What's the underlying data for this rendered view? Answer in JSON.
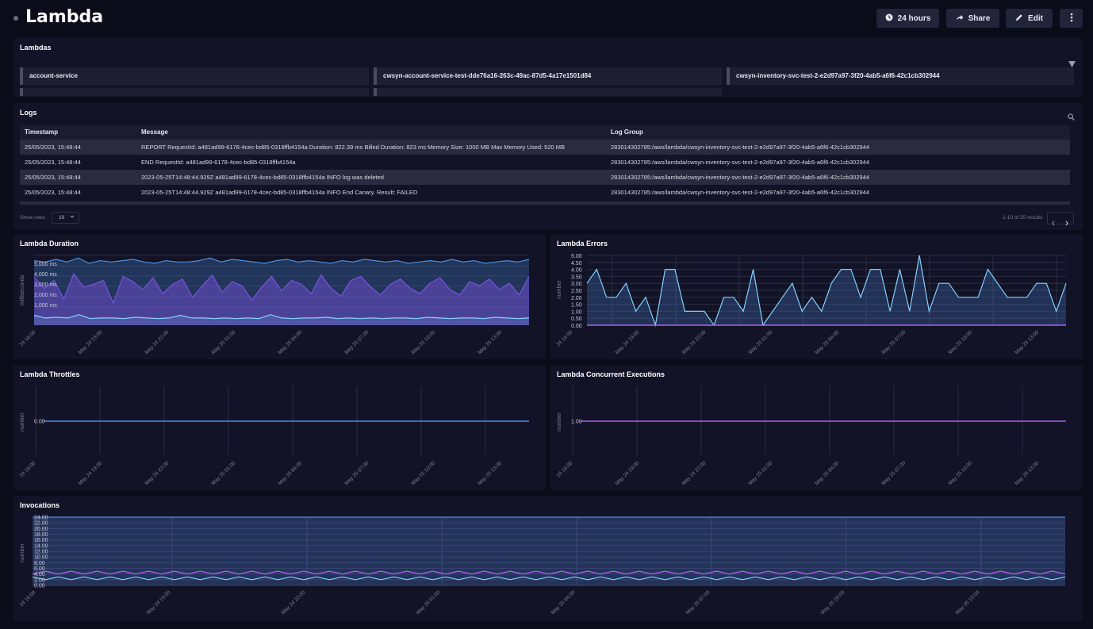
{
  "header": {
    "title": "Lambda",
    "time_label": "24 hours",
    "share_label": "Share",
    "edit_label": "Edit"
  },
  "lambdas": {
    "title": "Lambdas",
    "items": [
      "account-service",
      "cwsyn-account-service-test-dde76a16-263c-49ac-87d5-4a17e1501d84",
      "cwsyn-inventory-svc-test-2-e2d97a97-3f20-4ab5-a6f6-42c1cb302944"
    ]
  },
  "logs": {
    "title": "Logs",
    "columns": [
      "Timestamp",
      "Message",
      "Log Group"
    ],
    "rows": [
      [
        "25/05/2023, 15:48:44",
        "REPORT RequestId: a481ad99-6178-4cec-bd85-0318ffb4154a Duration: 822.39 ms Billed Duration: 823 ms Memory Size: 1000 MB Max Memory Used: 520 MB",
        "283014302785:/aws/lambda/cwsyn-inventory-svc-test-2-e2d97a97-3f20-4ab5-a6f6-42c1cb302944"
      ],
      [
        "25/05/2023, 15:48:44",
        "END RequestId: a481ad99-6178-4cec-bd85-0318ffb4154a",
        "283014302785:/aws/lambda/cwsyn-inventory-svc-test-2-e2d97a97-3f20-4ab5-a6f6-42c1cb302944"
      ],
      [
        "25/05/2023, 15:48:44",
        "2023-05-25T14:48:44.929Z a481ad99-6178-4cec-bd85-0318ffb4154a INFO log was deleted",
        "283014302785:/aws/lambda/cwsyn-inventory-svc-test-2-e2d97a97-3f20-4ab5-a6f6-42c1cb302944"
      ],
      [
        "25/05/2023, 15:48:44",
        "2023-05-25T14:48:44.929Z a481ad99-6178-4cec-bd85-0318ffb4154a INFO End Canary. Result: FAILED",
        "283014302785:/aws/lambda/cwsyn-inventory-svc-test-2-e2d97a97-3f20-4ab5-a6f6-42c1cb302944"
      ]
    ],
    "show_rows_label": "Show rows",
    "rows_value": "10",
    "results_text": "1-10 of 25 results"
  },
  "colors": {
    "blue": "#4a90e2",
    "cyan": "#7fd3ff",
    "purple": "#7b52e0",
    "magenta": "#b15cf2"
  },
  "x_ticks_a": [
    "24 16:00",
    "May 24 19:00",
    "May 24 22:00",
    "May 25 01:00",
    "May 25 04:00",
    "May 25 07:00",
    "May 25 10:00",
    "May 25 13:00"
  ],
  "x_ticks_b": [
    "24 16:00",
    "May 24 19:00",
    "May 24 22:00",
    "May 25 01:00",
    "May 25 04:00",
    "May 25 07:00",
    "May 25 10:00",
    "May 25 13:00"
  ],
  "chart_data": [
    {
      "type": "area",
      "title": "Lambda Duration",
      "ylabel": "milliseconds",
      "yticks": [
        "5,000 ms",
        "4,000 ms",
        "3,000 ms",
        "2,000 ms",
        "1,000 ms"
      ],
      "series": [
        {
          "values": [
            5400,
            5300,
            5500,
            5300,
            5600,
            5200,
            5400,
            5300,
            5400,
            5500,
            5300,
            5200,
            5400,
            5300,
            5300,
            5400,
            5600,
            5300,
            5500,
            5400,
            5300,
            5200,
            5400,
            5500,
            5300,
            5400,
            5300,
            5200,
            5400,
            5300,
            5500,
            5400,
            5300,
            5400,
            5200,
            5300,
            5400,
            5300,
            5500,
            5300,
            5400,
            5200,
            5300,
            5400,
            5300,
            5500
          ]
        },
        {
          "values": [
            4200,
            3300,
            3900,
            2500,
            4400,
            3400,
            3600,
            3900,
            2200,
            4200,
            3800,
            3200,
            4100,
            2900,
            3600,
            4000,
            2600,
            3500,
            4300,
            3000,
            3800,
            3500,
            2400,
            3400,
            4200,
            3100,
            3900,
            3600,
            2900,
            4300,
            3300,
            2700,
            3900,
            4200,
            3400,
            2800,
            3600,
            4000,
            3300,
            2900,
            3700,
            4100,
            3200,
            2800,
            3800,
            3500,
            4000,
            3200,
            3700,
            2800,
            4200
          ]
        },
        {
          "values": [
            1250,
            1050,
            1100,
            1050,
            1300,
            1000,
            1050,
            1050,
            1000,
            1100,
            1050,
            1000,
            1050,
            1250,
            1050,
            1050,
            1000,
            1050,
            1000,
            1050,
            1000,
            1300,
            1050,
            1000,
            1050,
            1050,
            1100,
            1000,
            1050,
            1000,
            1050,
            1000,
            1050,
            1050,
            1000,
            1100,
            1050,
            1000,
            1050,
            1050,
            1000,
            1100,
            1050,
            1000,
            1050
          ]
        }
      ]
    },
    {
      "type": "area",
      "title": "Lambda Errors",
      "ylabel": "number",
      "yticks": [
        "5.00",
        "4.50",
        "4.00",
        "3.50",
        "3.00",
        "2.50",
        "2.00",
        "1.50",
        "1.00",
        "0.50",
        "0.00"
      ],
      "series": [
        {
          "values": [
            3,
            4,
            2,
            2,
            3,
            1,
            2,
            0,
            4,
            4,
            1,
            1,
            1,
            0,
            2,
            2,
            1,
            4,
            0,
            1,
            2,
            3,
            1,
            2,
            1,
            3,
            4,
            4,
            2,
            4,
            4,
            1,
            4,
            1,
            5,
            1,
            3,
            3,
            2,
            2,
            2,
            4,
            3,
            2,
            2,
            2,
            3,
            3,
            1,
            3
          ]
        },
        {
          "values": [
            0,
            0,
            0,
            0,
            0,
            0,
            0,
            0,
            0,
            0,
            0,
            0,
            0,
            0,
            0,
            0,
            0,
            0,
            0,
            0,
            0,
            0,
            0,
            0,
            0,
            0,
            0,
            0,
            0,
            0,
            0,
            0,
            0,
            0,
            0,
            0,
            0,
            0,
            0,
            0,
            0,
            0,
            0,
            0,
            0,
            0,
            0,
            0,
            0,
            0
          ]
        }
      ]
    },
    {
      "type": "line",
      "title": "Lambda Throttles",
      "ylabel": "number",
      "yticks": [
        "0.00"
      ],
      "series": [
        {
          "values": [
            0,
            0,
            0,
            0,
            0,
            0,
            0,
            0
          ]
        }
      ]
    },
    {
      "type": "line",
      "title": "Lambda Concurrent Executions",
      "ylabel": "number",
      "yticks": [
        "1.00"
      ],
      "series": [
        {
          "values": [
            1,
            1,
            1,
            1,
            1,
            1,
            1,
            1
          ]
        }
      ]
    },
    {
      "type": "area",
      "title": "Invocations",
      "ylabel": "number",
      "yticks": [
        "24.00",
        "22.00",
        "20.00",
        "18.00",
        "16.00",
        "14.00",
        "12.00",
        "10.00",
        "8.00",
        "6.00",
        "4.00",
        "2.00",
        "0.00"
      ],
      "series": [
        {
          "values": [
            24,
            24,
            24,
            24,
            24,
            24,
            24,
            24
          ]
        },
        {
          "values": [
            4,
            5,
            4,
            5,
            4,
            5,
            4,
            5,
            4,
            5,
            4,
            5,
            4,
            5,
            4,
            5,
            4,
            5,
            4,
            5,
            4,
            5,
            4,
            5,
            4,
            5,
            4,
            5,
            4,
            5,
            4,
            5,
            4,
            5,
            4,
            5,
            4,
            5,
            4,
            5,
            4,
            5,
            4,
            5,
            4,
            5,
            4,
            5,
            4,
            5,
            4,
            5,
            4,
            5,
            4,
            5,
            4,
            5,
            4,
            5,
            4,
            5,
            4,
            5,
            4,
            5,
            4,
            5,
            4,
            5,
            4,
            5,
            4,
            5,
            4,
            5,
            4,
            5,
            4,
            5,
            4
          ]
        },
        {
          "values": [
            3,
            2,
            3,
            2,
            3,
            2,
            3,
            2,
            3,
            2,
            3,
            2,
            3,
            2,
            3,
            2,
            3,
            2,
            3,
            2,
            3,
            2,
            3,
            2,
            3,
            2,
            3,
            2,
            3,
            2,
            3,
            2,
            3,
            2,
            3,
            2,
            3,
            2,
            3,
            2,
            3,
            2,
            3,
            2,
            3,
            2,
            3,
            2,
            3,
            2,
            3,
            2,
            3,
            2,
            3,
            2,
            3,
            2,
            3,
            2,
            3,
            2,
            3,
            2,
            3,
            2,
            3,
            2,
            3,
            2,
            3,
            2,
            3,
            2,
            3,
            2,
            3,
            2,
            3,
            2,
            3
          ]
        }
      ],
      "x_ticks": [
        "24 16:00",
        "May 24 19:00",
        "May 24 22:00",
        "May 25 01:00",
        "May 25 04:00",
        "May 25 07:00",
        "May 25 10:00",
        "May 25 13:00"
      ]
    }
  ]
}
